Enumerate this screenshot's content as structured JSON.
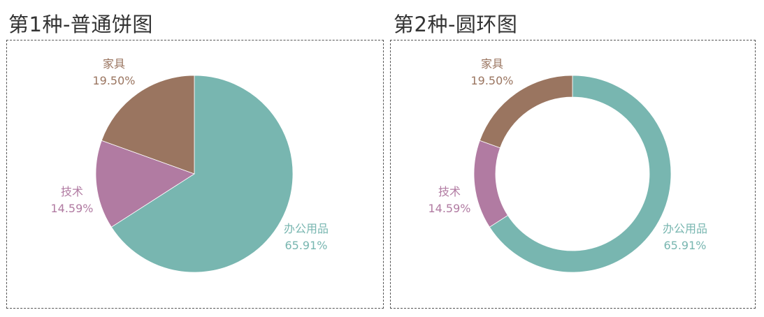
{
  "charts": [
    {
      "title": "第1种-普通饼图"
    },
    {
      "title": "第2种-圆环图"
    }
  ],
  "chart_data": [
    {
      "type": "pie",
      "title": "第1种-普通饼图",
      "categories": [
        "办公用品",
        "技术",
        "家具"
      ],
      "values": [
        65.91,
        14.59,
        19.5
      ],
      "value_labels": [
        "65.91%",
        "14.59%",
        "19.50%"
      ],
      "colors": [
        "#78b6b0",
        "#b17ba2",
        "#9a7560"
      ]
    },
    {
      "type": "pie",
      "title": "第2种-圆环图",
      "donut": true,
      "categories": [
        "办公用品",
        "技术",
        "家具"
      ],
      "values": [
        65.91,
        14.59,
        19.5
      ],
      "value_labels": [
        "65.91%",
        "14.59%",
        "19.50%"
      ],
      "colors": [
        "#78b6b0",
        "#b17ba2",
        "#9a7560"
      ]
    }
  ]
}
